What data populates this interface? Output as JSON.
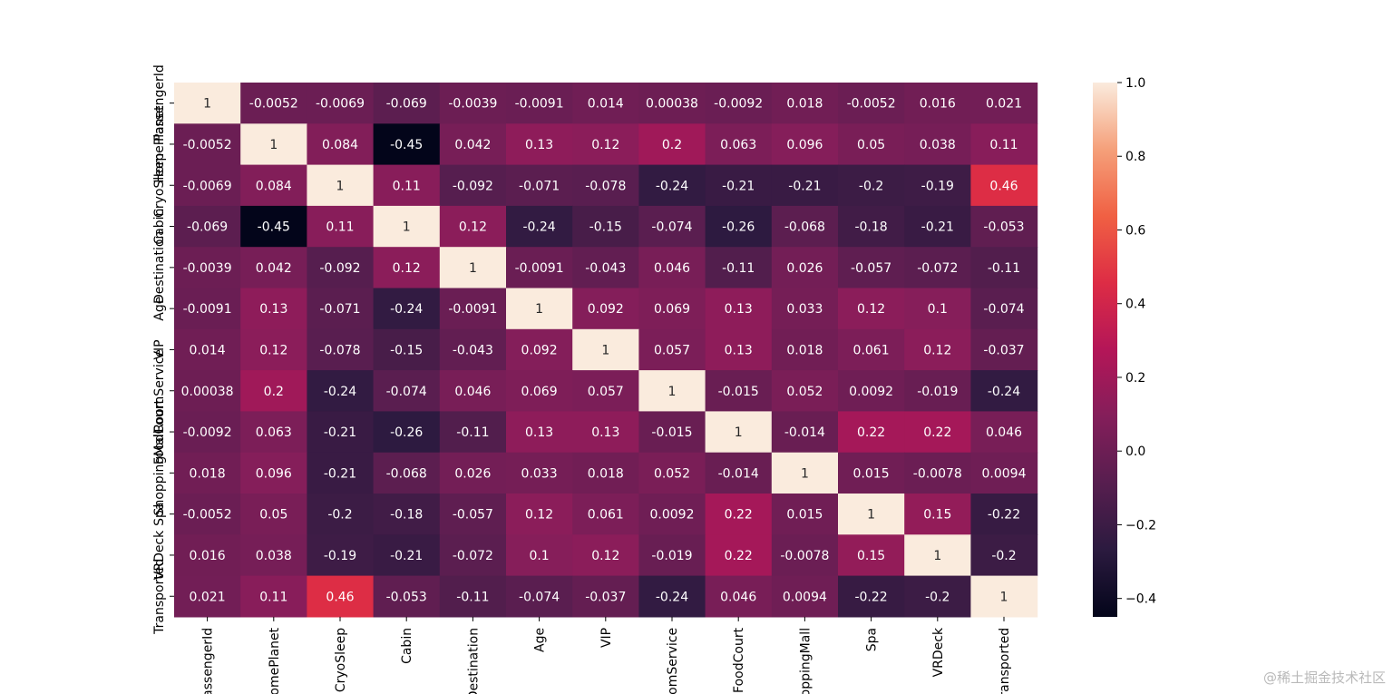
{
  "chart_data": {
    "type": "heatmap",
    "labels": [
      "PassengerId",
      "HomePlanet",
      "CryoSleep",
      "Cabin",
      "Destination",
      "Age",
      "VIP",
      "RoomService",
      "FoodCourt",
      "ShoppingMall",
      "Spa",
      "VRDeck",
      "Transported"
    ],
    "matrix": [
      [
        1,
        -0.0052,
        -0.0069,
        -0.069,
        -0.0039,
        -0.0091,
        0.014,
        0.00038,
        -0.0092,
        0.018,
        -0.0052,
        0.016,
        0.021
      ],
      [
        -0.0052,
        1,
        0.084,
        -0.45,
        0.042,
        0.13,
        0.12,
        0.2,
        0.063,
        0.096,
        0.05,
        0.038,
        0.11
      ],
      [
        -0.0069,
        0.084,
        1,
        0.11,
        -0.092,
        -0.071,
        -0.078,
        -0.24,
        -0.21,
        -0.21,
        -0.2,
        -0.19,
        0.46
      ],
      [
        -0.069,
        -0.45,
        0.11,
        1,
        0.12,
        -0.24,
        -0.15,
        -0.074,
        -0.26,
        -0.068,
        -0.18,
        -0.21,
        -0.053
      ],
      [
        -0.0039,
        0.042,
        -0.092,
        0.12,
        1,
        -0.0091,
        -0.043,
        0.046,
        -0.11,
        0.026,
        -0.057,
        -0.072,
        -0.11
      ],
      [
        -0.0091,
        0.13,
        -0.071,
        -0.24,
        -0.0091,
        1,
        0.092,
        0.069,
        0.13,
        0.033,
        0.12,
        0.1,
        -0.074
      ],
      [
        0.014,
        0.12,
        -0.078,
        -0.15,
        -0.043,
        0.092,
        1,
        0.057,
        0.13,
        0.018,
        0.061,
        0.12,
        -0.037
      ],
      [
        0.00038,
        0.2,
        -0.24,
        -0.074,
        0.046,
        0.069,
        0.057,
        1,
        -0.015,
        0.052,
        0.0092,
        -0.019,
        -0.24
      ],
      [
        -0.0092,
        0.063,
        -0.21,
        -0.26,
        -0.11,
        0.13,
        0.13,
        -0.015,
        1,
        -0.014,
        0.22,
        0.22,
        0.046
      ],
      [
        0.018,
        0.096,
        -0.21,
        -0.068,
        0.026,
        0.033,
        0.018,
        0.052,
        -0.014,
        1,
        0.015,
        -0.0078,
        0.0094
      ],
      [
        -0.0052,
        0.05,
        -0.2,
        -0.18,
        -0.057,
        0.12,
        0.061,
        0.0092,
        0.22,
        0.015,
        1,
        0.15,
        -0.22
      ],
      [
        0.016,
        0.038,
        -0.19,
        -0.21,
        -0.072,
        0.1,
        0.12,
        -0.019,
        0.22,
        -0.0078,
        0.15,
        1,
        -0.2
      ],
      [
        0.021,
        0.11,
        0.46,
        -0.053,
        -0.11,
        -0.074,
        -0.037,
        -0.24,
        0.046,
        0.0094,
        -0.22,
        -0.2,
        1
      ]
    ],
    "display_text": [
      [
        "1",
        "-0.0052",
        "-0.0069",
        "-0.069",
        "-0.0039",
        "-0.0091",
        "0.014",
        "0.00038",
        "-0.0092",
        "0.018",
        "-0.0052",
        "0.016",
        "0.021"
      ],
      [
        "-0.0052",
        "1",
        "0.084",
        "-0.45",
        "0.042",
        "0.13",
        "0.12",
        "0.2",
        "0.063",
        "0.096",
        "0.05",
        "0.038",
        "0.11"
      ],
      [
        "-0.0069",
        "0.084",
        "1",
        "0.11",
        "-0.092",
        "-0.071",
        "-0.078",
        "-0.24",
        "-0.21",
        "-0.21",
        "-0.2",
        "-0.19",
        "0.46"
      ],
      [
        "-0.069",
        "-0.45",
        "0.11",
        "1",
        "0.12",
        "-0.24",
        "-0.15",
        "-0.074",
        "-0.26",
        "-0.068",
        "-0.18",
        "-0.21",
        "-0.053"
      ],
      [
        "-0.0039",
        "0.042",
        "-0.092",
        "0.12",
        "1",
        "-0.0091",
        "-0.043",
        "0.046",
        "-0.11",
        "0.026",
        "-0.057",
        "-0.072",
        "-0.11"
      ],
      [
        "-0.0091",
        "0.13",
        "-0.071",
        "-0.24",
        "-0.0091",
        "1",
        "0.092",
        "0.069",
        "0.13",
        "0.033",
        "0.12",
        "0.1",
        "-0.074"
      ],
      [
        "0.014",
        "0.12",
        "-0.078",
        "-0.15",
        "-0.043",
        "0.092",
        "1",
        "0.057",
        "0.13",
        "0.018",
        "0.061",
        "0.12",
        "-0.037"
      ],
      [
        "0.00038",
        "0.2",
        "-0.24",
        "-0.074",
        "0.046",
        "0.069",
        "0.057",
        "1",
        "-0.015",
        "0.052",
        "0.0092",
        "-0.019",
        "-0.24"
      ],
      [
        "-0.0092",
        "0.063",
        "-0.21",
        "-0.26",
        "-0.11",
        "0.13",
        "0.13",
        "-0.015",
        "1",
        "-0.014",
        "0.22",
        "0.22",
        "0.046"
      ],
      [
        "0.018",
        "0.096",
        "-0.21",
        "-0.068",
        "0.026",
        "0.033",
        "0.018",
        "0.052",
        "-0.014",
        "1",
        "0.015",
        "-0.0078",
        "0.0094"
      ],
      [
        "-0.0052",
        "0.05",
        "-0.2",
        "-0.18",
        "-0.057",
        "0.12",
        "0.061",
        "0.0092",
        "0.22",
        "0.015",
        "1",
        "0.15",
        "-0.22"
      ],
      [
        "0.016",
        "0.038",
        "-0.19",
        "-0.21",
        "-0.072",
        "0.1",
        "0.12",
        "-0.019",
        "0.22",
        "-0.0078",
        "0.15",
        "1",
        "-0.2"
      ],
      [
        "0.021",
        "0.11",
        "0.46",
        "-0.053",
        "-0.11",
        "-0.074",
        "-0.037",
        "-0.24",
        "0.046",
        "0.0094",
        "-0.22",
        "-0.2",
        "1"
      ]
    ],
    "colorbar": {
      "range": [
        -0.45,
        1
      ],
      "ticks": [
        1.0,
        0.8,
        0.6,
        0.4,
        0.2,
        0.0,
        -0.2,
        -0.4
      ],
      "tick_labels": [
        "1.0",
        "0.8",
        "0.6",
        "0.4",
        "0.2",
        "0.0",
        "−0.2",
        "−0.4"
      ]
    },
    "colormap": "rocket",
    "colormap_stops": [
      [
        0.0,
        "#03051a"
      ],
      [
        0.125,
        "#2b1a3f"
      ],
      [
        0.25,
        "#571e4f"
      ],
      [
        0.375,
        "#841e5a"
      ],
      [
        0.5,
        "#b41658"
      ],
      [
        0.625,
        "#dd2c45"
      ],
      [
        0.75,
        "#f06043"
      ],
      [
        0.875,
        "#f5a07a"
      ],
      [
        1.0,
        "#faebdd"
      ]
    ],
    "title": "",
    "xlabel": "",
    "ylabel": ""
  },
  "watermark": "@稀土掘金技术社区"
}
